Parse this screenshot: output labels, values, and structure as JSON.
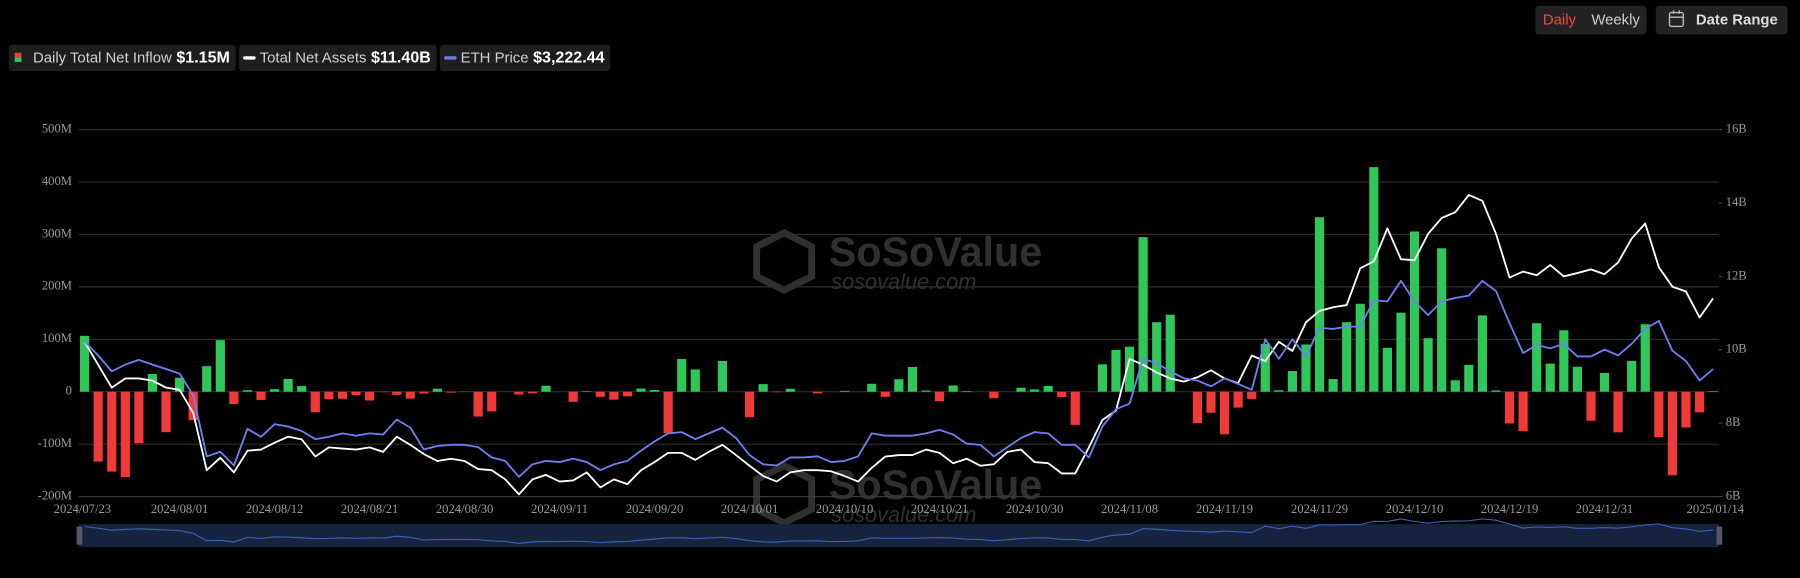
{
  "controls": {
    "daily": "Daily",
    "weekly": "Weekly",
    "date_range": "Date Range"
  },
  "watermark": {
    "brand": "SoSoValue",
    "url": "sosovalue.com"
  },
  "chart_data": {
    "type": "combo",
    "categories": [
      "2024/07/23",
      null,
      null,
      null,
      null,
      null,
      null,
      "2024/08/01",
      null,
      null,
      null,
      null,
      null,
      null,
      "2024/08/12",
      null,
      null,
      null,
      null,
      null,
      null,
      "2024/08/21",
      null,
      null,
      null,
      null,
      null,
      null,
      "2024/08/30",
      null,
      null,
      null,
      null,
      null,
      null,
      "2024/09/11",
      null,
      null,
      null,
      null,
      null,
      null,
      "2024/09/20",
      null,
      null,
      null,
      null,
      null,
      null,
      "2024/10/01",
      null,
      null,
      null,
      null,
      null,
      null,
      "2024/10/10",
      null,
      null,
      null,
      null,
      null,
      null,
      "2024/10/21",
      null,
      null,
      null,
      null,
      null,
      null,
      "2024/10/30",
      null,
      null,
      null,
      null,
      null,
      null,
      "2024/11/08",
      null,
      null,
      null,
      null,
      null,
      null,
      "2024/11/19",
      null,
      null,
      null,
      null,
      null,
      null,
      "2024/11/29",
      null,
      null,
      null,
      null,
      null,
      null,
      "2024/12/10",
      null,
      null,
      null,
      null,
      null,
      null,
      "2024/12/19",
      null,
      null,
      null,
      null,
      null,
      null,
      "2024/12/31",
      null,
      null,
      null,
      null,
      null,
      null,
      null,
      "2025/01/14"
    ],
    "ylim": [
      -200,
      500
    ],
    "yticks": [
      {
        "value": -200,
        "label": "-200M"
      },
      {
        "value": -100,
        "label": "-100M"
      },
      0,
      {
        "value": 100,
        "label": "100M"
      },
      {
        "value": 200,
        "label": "200M"
      },
      {
        "value": 300,
        "label": "300M"
      },
      {
        "value": 400,
        "label": "400M"
      },
      {
        "value": 500,
        "label": "500M"
      }
    ],
    "y2lim": [
      6,
      16
    ],
    "y2ticks": [
      {
        "value": 6,
        "label": "6B"
      },
      {
        "value": 8,
        "label": "8B"
      },
      {
        "value": 10,
        "label": "10B"
      },
      {
        "value": 12,
        "label": "12B"
      },
      {
        "value": 14,
        "label": "14B"
      },
      {
        "value": 16,
        "label": "16B"
      }
    ],
    "y3lim": [
      2100,
      5330
    ],
    "grid": true,
    "series": [
      {
        "name": "Daily Total Net Inflow",
        "type": "bar",
        "axis": "y",
        "color": "#2fc75a",
        "negative_color": "#f03a3a",
        "legend_label": "$1.15M",
        "values": [
          106.6,
          -133.3,
          -152.4,
          -162.7,
          -98.3,
          33.7,
          -77.2,
          26.7,
          -54.3,
          48.8,
          98.4,
          -23.7,
          2.8,
          -15.7,
          4.9,
          24.3,
          10.8,
          -39.2,
          -14.2,
          -13.5,
          -6.5,
          -16.7,
          -0.9,
          -5.8,
          -13.2,
          -3.4,
          5.8,
          -1.8,
          -0.5,
          -47.4,
          -37.5,
          -0.2,
          -5.2,
          -2.9,
          11.4,
          0,
          -19.3,
          1.1,
          -9.8,
          -15.1,
          -8.8,
          6.1,
          3.2,
          -79.3,
          62.5,
          42.5,
          0,
          58.7,
          0,
          -48.6,
          14.5,
          -0.9,
          5.7,
          0,
          -3.2,
          0,
          1.6,
          0,
          15.1,
          -9.7,
          23.8,
          47.2,
          2.3,
          -18.1,
          11.9,
          1.3,
          0,
          -12.3,
          0,
          7.6,
          4.4,
          10.9,
          -10.2,
          -63.2,
          0,
          52.3,
          79.7,
          85.9,
          294.9,
          132.6,
          146.9,
          0,
          -59.8,
          -40.1,
          -81.3,
          -30.3,
          -13.8,
          91.2,
          2.8,
          39.5,
          90.1,
          332.9,
          24.2,
          132.6,
          167.7,
          428.4,
          83.8,
          150.8,
          305.7,
          102.1,
          273.7,
          21.8,
          51.3,
          145.6,
          2.5,
          -60.5,
          -75.1,
          130.8,
          53.6,
          117.2,
          47.7,
          -55.4,
          35.9,
          -77.5,
          58.9,
          128.7,
          -86.8,
          -159.4,
          -68.4,
          -39.4,
          1.15
        ]
      },
      {
        "name": "Total Net Assets",
        "type": "line",
        "axis": "y2",
        "color": "#ffffff",
        "legend_label": "$11.40B",
        "values": [
          10.22,
          9.59,
          8.97,
          9.22,
          9.22,
          9.16,
          8.97,
          8.91,
          8.28,
          6.72,
          7.06,
          6.66,
          7.25,
          7.28,
          7.47,
          7.63,
          7.56,
          7.09,
          7.34,
          7.31,
          7.28,
          7.34,
          7.22,
          7.63,
          7.41,
          7.16,
          6.97,
          7.03,
          6.97,
          6.75,
          6.72,
          6.47,
          6.06,
          6.47,
          6.59,
          6.41,
          6.44,
          6.66,
          6.25,
          6.47,
          6.34,
          6.72,
          6.94,
          7.19,
          7.19,
          7.0,
          7.22,
          7.41,
          7.13,
          6.84,
          6.56,
          6.41,
          6.66,
          6.72,
          6.72,
          6.69,
          6.56,
          6.41,
          6.78,
          7.09,
          7.13,
          7.13,
          7.28,
          7.19,
          6.91,
          7.03,
          6.84,
          6.88,
          7.22,
          7.28,
          6.94,
          6.91,
          6.63,
          6.63,
          7.34,
          8.09,
          8.34,
          9.75,
          9.59,
          9.38,
          9.22,
          9.13,
          9.25,
          9.44,
          9.22,
          9.09,
          9.84,
          9.69,
          10.22,
          9.97,
          10.75,
          11.06,
          11.16,
          11.22,
          12.22,
          12.41,
          13.31,
          12.47,
          12.44,
          13.16,
          13.59,
          13.75,
          14.22,
          14.06,
          13.16,
          11.97,
          12.13,
          12.03,
          12.31,
          12.0,
          12.09,
          12.19,
          12.06,
          12.38,
          13.03,
          13.44,
          12.25,
          11.72,
          11.59,
          10.88,
          11.4
        ]
      },
      {
        "name": "ETH Price",
        "type": "line",
        "axis": "y3",
        "color": "#6d7ff0",
        "legend_label": "$3,222.44",
        "values": [
          3464,
          3343,
          3202,
          3262,
          3303,
          3262,
          3222,
          3182,
          2990,
          2454,
          2495,
          2374,
          2697,
          2626,
          2737,
          2717,
          2677,
          2606,
          2626,
          2656,
          2636,
          2656,
          2646,
          2778,
          2707,
          2515,
          2545,
          2555,
          2555,
          2535,
          2444,
          2414,
          2273,
          2384,
          2414,
          2404,
          2434,
          2404,
          2333,
          2384,
          2414,
          2505,
          2586,
          2656,
          2667,
          2606,
          2656,
          2707,
          2616,
          2464,
          2384,
          2374,
          2444,
          2444,
          2454,
          2404,
          2414,
          2454,
          2656,
          2636,
          2636,
          2636,
          2656,
          2687,
          2646,
          2565,
          2555,
          2454,
          2535,
          2616,
          2667,
          2656,
          2555,
          2555,
          2444,
          2717,
          2868,
          2919,
          3313,
          3273,
          3202,
          3141,
          3121,
          3070,
          3141,
          3091,
          3040,
          3485,
          3313,
          3485,
          3333,
          3586,
          3576,
          3596,
          3596,
          3828,
          3818,
          3999,
          3818,
          3697,
          3818,
          3848,
          3868,
          3999,
          3909,
          3626,
          3363,
          3434,
          3404,
          3444,
          3333,
          3333,
          3394,
          3343,
          3444,
          3576,
          3646,
          3384,
          3293,
          3121,
          3222.44
        ]
      }
    ]
  }
}
